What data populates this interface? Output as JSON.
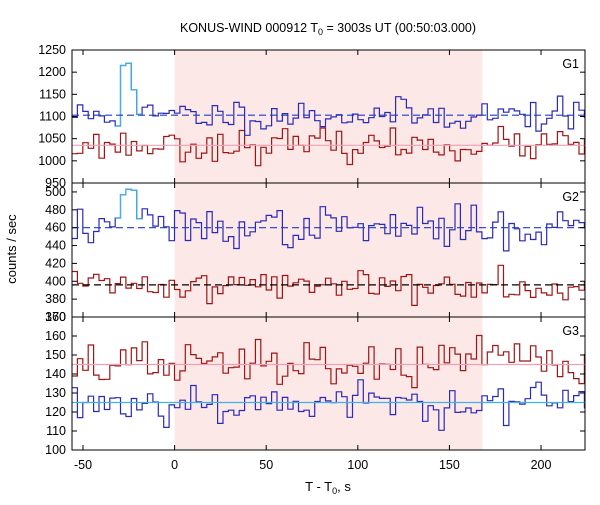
{
  "chart_data": {
    "type": "line",
    "title": {
      "pre": "KONUS-WIND 000912 T",
      "sub": "0",
      "post": " = 3003s UT (00:50:03.000)"
    },
    "xlabel": {
      "pre": "T - T",
      "sub": "0",
      "post": ", s"
    },
    "ylabel": "counts / sec",
    "xlim": [
      -56,
      224
    ],
    "xticks": [
      "-50",
      "0",
      "50",
      "100",
      "150",
      "200"
    ],
    "highlight_interval": {
      "x": [
        0,
        168
      ],
      "color": "#fde8e8"
    },
    "colors": {
      "blue": "#2a2ab8",
      "cyan": "#3cb4e6",
      "red": "#a01414",
      "pink": "#f0a0b4",
      "dark": "#000000"
    },
    "panels": [
      {
        "label": "G1",
        "ylim": [
          950,
          1250
        ],
        "yticks": [
          "950",
          "1000",
          "1050",
          "1100",
          "1150",
          "1200",
          "1250"
        ],
        "blue_mean": 1103,
        "blue_mean_style": "dashed",
        "blue_mean_color": "#1a3cc8",
        "red_mean": 1035,
        "red_mean_style": "solid",
        "red_mean_color": "#f0a0b4",
        "blue_bg_level": 1103,
        "blue_burst": [
          [
            -30,
            1215
          ],
          [
            -27,
            1220
          ],
          [
            -24,
            1160
          ],
          [
            -21,
            1105
          ]
        ],
        "blue_amp": 18,
        "red_amp": 17,
        "blue_seed": 11,
        "red_seed": 23
      },
      {
        "label": "G2",
        "ylim": [
          360,
          510
        ],
        "yticks": [
          "360",
          "380",
          "400",
          "420",
          "440",
          "460",
          "480",
          "500"
        ],
        "blue_mean": 460,
        "blue_mean_style": "dashed",
        "blue_mean_color": "#1a3cc8",
        "red_mean": 396,
        "red_mean_style": "dashed",
        "red_mean_color": "#000000",
        "blue_bg_level": 460,
        "blue_burst": [
          [
            -30,
            497
          ],
          [
            -27,
            503
          ],
          [
            -24,
            502
          ],
          [
            -21,
            470
          ]
        ],
        "blue_amp": 11,
        "red_amp": 9,
        "blue_seed": 37,
        "red_seed": 41
      },
      {
        "label": "G3",
        "ylim": [
          100,
          170
        ],
        "yticks": [
          "100",
          "110",
          "120",
          "130",
          "140",
          "150",
          "160",
          "170"
        ],
        "blue_mean": 125,
        "blue_mean_style": "solid",
        "blue_mean_color": "#3cb4e6",
        "red_mean": 145,
        "red_mean_style": "solid",
        "red_mean_color": "#f0a0b4",
        "blue_bg_level": 125,
        "blue_burst": [],
        "blue_amp": 5.5,
        "red_amp": 6,
        "blue_seed": 53,
        "red_seed": 67
      }
    ],
    "bin_width_s": 2.944
  }
}
